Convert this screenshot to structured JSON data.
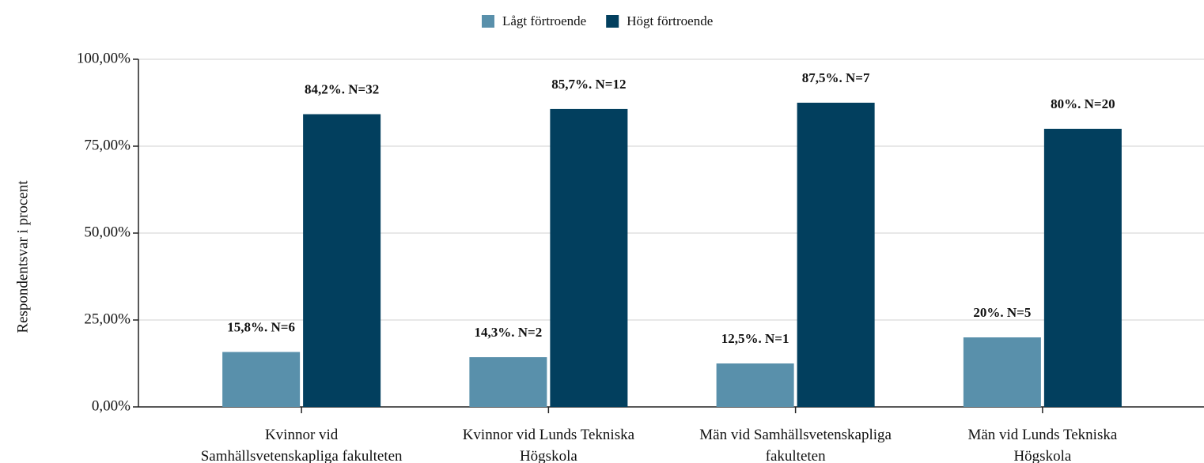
{
  "chart_data": {
    "type": "bar",
    "y_label": "Respondentsvar i procent",
    "categories": [
      "Kvinnor vid\nSamhällsvetenskapliga fakulteten",
      "Kvinnor vid Lunds Tekniska\nHögskola",
      "Män vid Samhällsvetenskapliga\nfakulteten",
      "Män vid Lunds Tekniska\nHögskola"
    ],
    "series": [
      {
        "name": "Lågt förtroende",
        "color": "#5990ab",
        "values": [
          15.8,
          14.3,
          12.5,
          20
        ],
        "value_labels": [
          "15,8%. N=6",
          "14,3%. N=2",
          "12,5%. N=1",
          "20%. N=5"
        ]
      },
      {
        "name": "Högt förtroende",
        "color": "#023f5e",
        "values": [
          84.2,
          85.7,
          87.5,
          80
        ],
        "value_labels": [
          "84,2%. N=32",
          "85,7%. N=12",
          "87,5%. N=7",
          "80%. N=20"
        ]
      }
    ],
    "ylim": [
      0,
      100
    ],
    "yticks": [
      {
        "value": 0,
        "label": "0,00%"
      },
      {
        "value": 25,
        "label": "25,00%"
      },
      {
        "value": 50,
        "label": "50,00%"
      },
      {
        "value": 75,
        "label": "75,00%"
      },
      {
        "value": 100,
        "label": "100,00%"
      }
    ],
    "grid": true,
    "legend": "top"
  }
}
